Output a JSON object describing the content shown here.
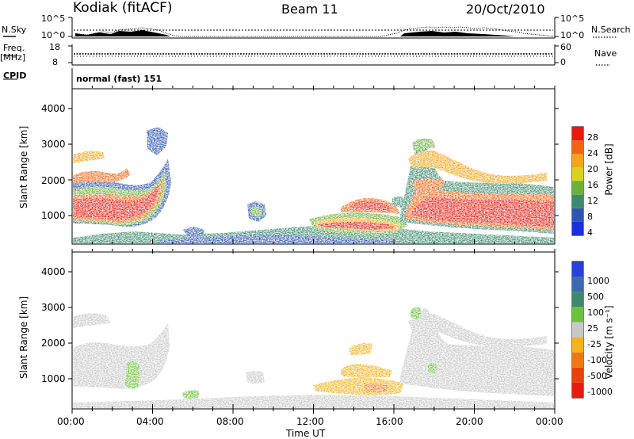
{
  "header": {
    "station": "Kodiak (fitACF)",
    "beam": "Beam 11",
    "date": "20/Oct/2010"
  },
  "top_panels": {
    "nsky_label": "N.Sky",
    "nsearch_label": "N.Search",
    "nsky_ticks": [
      "10^5",
      "10^0"
    ],
    "nsearch_ticks": [
      "10^5",
      "10^0"
    ],
    "freq_label_1": "Freq.",
    "freq_label_2": "[MHz]",
    "freq_ticks": [
      "18",
      "8"
    ],
    "nave_label": "Nave",
    "nave_ticks": [
      "60",
      "0"
    ],
    "cpid_label": "CPID",
    "cpid_value": "normal (fast) 151"
  },
  "chart_data": [
    {
      "type": "heatmap",
      "title": "",
      "ylabel": "Slant Range [km]",
      "xlabel": "",
      "colorbar_label": "Power [dB]",
      "colorbar_ticks": [
        "4",
        "8",
        "12",
        "16",
        "20",
        "24",
        "28"
      ],
      "colorbar_colors": [
        "#1a2ee0",
        "#2e55b0",
        "#3d8a6e",
        "#6ab23c",
        "#d6d21e",
        "#f5a41a",
        "#f06414",
        "#e81a10"
      ],
      "ylim": [
        180,
        4600
      ],
      "yticks": [
        "1000",
        "2000",
        "3000",
        "4000"
      ],
      "xlim_hours": [
        0,
        24
      ],
      "xticks": [
        "00:00",
        "04:00",
        "08:00",
        "12:00",
        "16:00",
        "20:00",
        "00:00"
      ]
    },
    {
      "type": "heatmap",
      "title": "",
      "ylabel": "Slant Range [km]",
      "xlabel": "Time UT",
      "colorbar_label": "Velocity [m s⁻¹]",
      "colorbar_ticks": [
        "1000",
        "500",
        "100",
        "25",
        "-25",
        "-100",
        "-500",
        "-1000"
      ],
      "colorbar_colors": [
        "#2a3ed8",
        "#3a6ab0",
        "#3d8a6e",
        "#6cc23a",
        "#c8c8c8",
        "#f5b21a",
        "#f07812",
        "#e8420c",
        "#e81a10"
      ],
      "ylim": [
        180,
        4600
      ],
      "yticks": [
        "1000",
        "2000",
        "3000",
        "4000"
      ],
      "xlim_hours": [
        0,
        24
      ],
      "xticks": [
        "00:00",
        "04:00",
        "08:00",
        "12:00",
        "16:00",
        "20:00",
        "00:00"
      ]
    }
  ]
}
